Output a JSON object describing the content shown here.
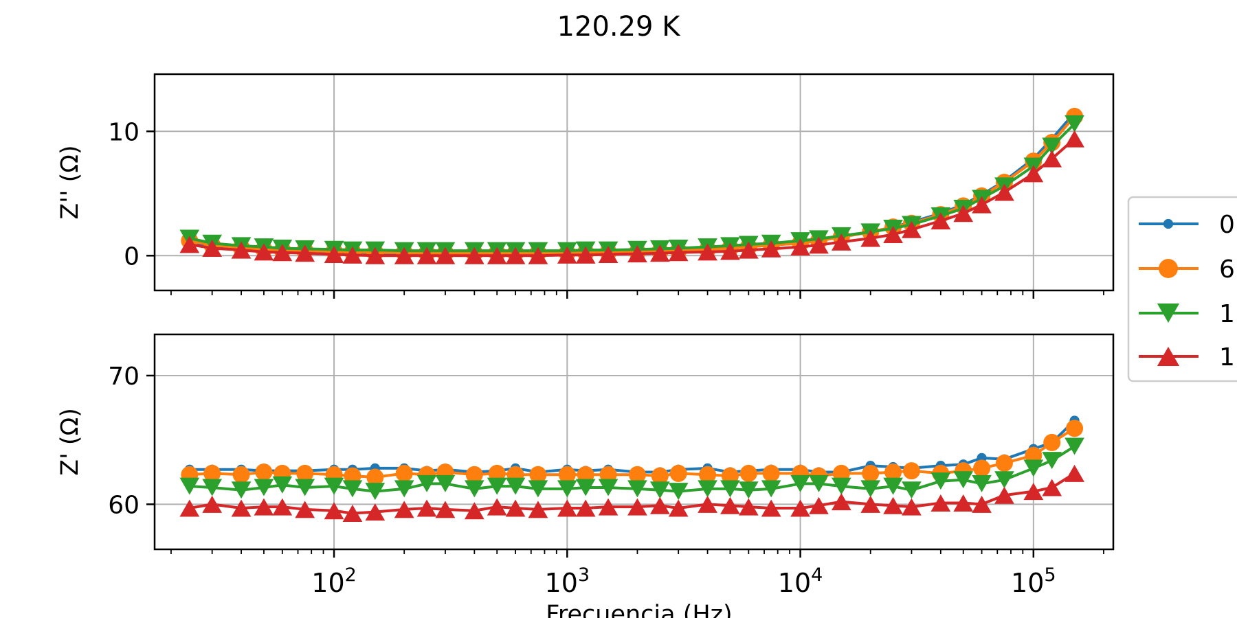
{
  "title": "120.29 K",
  "chart_data": {
    "type": "line",
    "title": "120.29 K",
    "xlabel": "Frecuencia (Hz)",
    "xscale": "log",
    "xlim": [
      17,
      220000
    ],
    "xticks": [
      100,
      1000,
      10000,
      100000
    ],
    "xtick_labels": [
      {
        "base": "10",
        "exp": "2"
      },
      {
        "base": "10",
        "exp": "3"
      },
      {
        "base": "10",
        "exp": "4"
      },
      {
        "base": "10",
        "exp": "5"
      }
    ],
    "grid": true,
    "legend": {
      "placement": "right, outside",
      "labels": [
        "0",
        "6",
        "1",
        "1"
      ]
    },
    "x": [
      24,
      30,
      40,
      50,
      60,
      75,
      100,
      120,
      150,
      200,
      250,
      300,
      400,
      500,
      600,
      750,
      1000,
      1200,
      1500,
      2000,
      2500,
      3000,
      4000,
      5000,
      6000,
      7500,
      10000,
      12000,
      15000,
      20000,
      25000,
      30000,
      40000,
      50000,
      60000,
      75000,
      100000,
      120000,
      150000
    ],
    "panels": [
      {
        "ylabel": "Z'' (Ω)",
        "ylim": [
          -2.8,
          14.6
        ],
        "yticks": [
          0,
          10
        ],
        "series": [
          {
            "color": "#1f77b4",
            "marker": "dot",
            "values": [
              1.1,
              0.8,
              0.6,
              0.5,
              0.45,
              0.4,
              0.3,
              0.25,
              0.2,
              0.2,
              0.18,
              0.18,
              0.18,
              0.18,
              0.2,
              0.2,
              0.2,
              0.22,
              0.25,
              0.3,
              0.35,
              0.4,
              0.5,
              0.6,
              0.7,
              0.85,
              1.0,
              1.2,
              1.5,
              1.9,
              2.3,
              2.7,
              3.4,
              4.1,
              4.9,
              6.0,
              7.8,
              9.4,
              11.5
            ]
          },
          {
            "color": "#ff7f0e",
            "marker": "circle",
            "values": [
              1.2,
              0.85,
              0.65,
              0.5,
              0.45,
              0.4,
              0.35,
              0.3,
              0.25,
              0.25,
              0.2,
              0.2,
              0.2,
              0.22,
              0.22,
              0.22,
              0.22,
              0.25,
              0.28,
              0.3,
              0.35,
              0.4,
              0.5,
              0.6,
              0.7,
              0.85,
              1.0,
              1.2,
              1.5,
              1.9,
              2.3,
              2.6,
              3.3,
              4.0,
              4.8,
              5.9,
              7.6,
              9.1,
              11.2
            ]
          },
          {
            "color": "#2ca02c",
            "marker": "triangle-down",
            "values": [
              1.4,
              1.0,
              0.8,
              0.7,
              0.6,
              0.55,
              0.5,
              0.45,
              0.45,
              0.4,
              0.4,
              0.4,
              0.4,
              0.4,
              0.4,
              0.4,
              0.4,
              0.45,
              0.45,
              0.5,
              0.55,
              0.6,
              0.7,
              0.8,
              0.9,
              1.0,
              1.2,
              1.35,
              1.6,
              1.9,
              2.2,
              2.5,
              3.2,
              3.8,
              4.6,
              5.6,
              7.2,
              8.8,
              10.6
            ]
          },
          {
            "color": "#d62728",
            "marker": "triangle-up",
            "values": [
              0.9,
              0.6,
              0.45,
              0.3,
              0.25,
              0.2,
              0.1,
              0.05,
              0.0,
              0.0,
              0.0,
              0.0,
              0.0,
              0.0,
              0.0,
              0.0,
              0.05,
              0.05,
              0.1,
              0.15,
              0.2,
              0.25,
              0.3,
              0.35,
              0.45,
              0.55,
              0.7,
              0.85,
              1.1,
              1.4,
              1.7,
              2.1,
              2.8,
              3.4,
              4.1,
              5.1,
              6.6,
              7.8,
              9.4
            ]
          }
        ]
      },
      {
        "ylabel": "Z' (Ω)",
        "ylim": [
          56.5,
          73.2
        ],
        "yticks": [
          60,
          70
        ],
        "series": [
          {
            "color": "#1f77b4",
            "marker": "dot",
            "values": [
              62.7,
              62.7,
              62.7,
              62.6,
              62.6,
              62.6,
              62.7,
              62.7,
              62.8,
              62.8,
              62.6,
              62.7,
              62.5,
              62.6,
              62.8,
              62.5,
              62.7,
              62.6,
              62.7,
              62.5,
              62.5,
              62.7,
              62.8,
              62.5,
              62.6,
              62.7,
              62.7,
              62.5,
              62.5,
              63.0,
              62.9,
              62.8,
              63.0,
              63.1,
              63.6,
              63.5,
              64.3,
              64.8,
              66.5
            ]
          },
          {
            "color": "#ff7f0e",
            "marker": "circle",
            "values": [
              62.3,
              62.4,
              62.3,
              62.5,
              62.4,
              62.4,
              62.3,
              62.2,
              62.1,
              62.4,
              62.3,
              62.5,
              62.3,
              62.4,
              62.3,
              62.3,
              62.3,
              62.3,
              62.3,
              62.3,
              62.2,
              62.4,
              62.3,
              62.2,
              62.4,
              62.4,
              62.4,
              62.2,
              62.4,
              62.4,
              62.5,
              62.6,
              62.4,
              62.6,
              62.8,
              63.2,
              63.8,
              64.8,
              65.9
            ]
          },
          {
            "color": "#2ca02c",
            "marker": "triangle-down",
            "values": [
              61.4,
              61.3,
              61.1,
              61.3,
              61.5,
              61.3,
              61.4,
              61.2,
              61.0,
              61.2,
              61.6,
              61.6,
              61.2,
              61.4,
              61.4,
              61.2,
              61.2,
              61.3,
              61.3,
              61.2,
              61.1,
              61.0,
              61.2,
              61.2,
              61.1,
              61.2,
              61.6,
              61.6,
              61.4,
              61.2,
              61.4,
              61.1,
              61.8,
              61.9,
              61.6,
              61.9,
              62.8,
              63.4,
              64.5
            ]
          },
          {
            "color": "#d62728",
            "marker": "triangle-up",
            "values": [
              59.7,
              60.0,
              59.7,
              59.8,
              59.8,
              59.6,
              59.5,
              59.3,
              59.4,
              59.6,
              59.7,
              59.6,
              59.5,
              59.8,
              59.7,
              59.6,
              59.7,
              59.7,
              59.8,
              59.8,
              59.9,
              59.7,
              60.0,
              59.9,
              59.8,
              59.7,
              59.7,
              59.9,
              60.2,
              60.0,
              59.9,
              59.8,
              60.1,
              60.1,
              60.0,
              60.7,
              61.0,
              61.3,
              62.4
            ]
          }
        ]
      }
    ]
  }
}
